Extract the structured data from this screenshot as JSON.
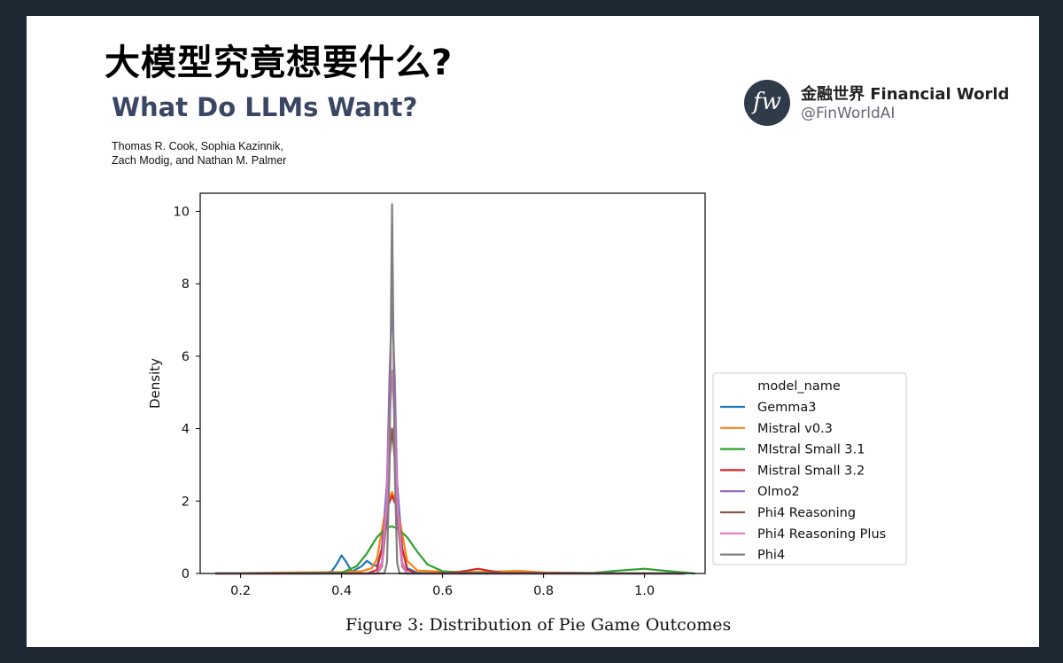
{
  "header": {
    "title_cn": "大模型究竟想要什么?",
    "title_en": "What Do LLMs Want?",
    "authors_line1": "Thomas R. Cook, Sophia Kazinnik,",
    "authors_line2": "Zach Modig, and Nathan M. Palmer"
  },
  "brand": {
    "logo_text": "fw",
    "name": "金融世界 Financial World",
    "handle": "@FinWorldAI"
  },
  "caption": "Figure 3: Distribution of Pie Game Outcomes",
  "chart_data": {
    "type": "line",
    "title": "",
    "xlabel": "",
    "ylabel": "Density",
    "xlim": [
      0.12,
      1.12
    ],
    "ylim": [
      0,
      10.5
    ],
    "xticks": [
      0.2,
      0.4,
      0.6,
      0.8,
      1.0
    ],
    "xtick_labels": [
      "0.2",
      "0.4",
      "0.6",
      "0.8",
      "1.0"
    ],
    "yticks": [
      0,
      2,
      4,
      6,
      8,
      10
    ],
    "ytick_labels": [
      "0",
      "2",
      "4",
      "6",
      "8",
      "10"
    ],
    "grid": false,
    "legend_title": "model_name",
    "legend_position": "right",
    "series": [
      {
        "name": "Gemma3",
        "color": "#1f77b4",
        "x": [
          0.15,
          0.35,
          0.38,
          0.39,
          0.4,
          0.41,
          0.42,
          0.44,
          0.45,
          0.46,
          0.47,
          0.48,
          0.49,
          0.495,
          0.5,
          0.505,
          0.51,
          0.52,
          0.53,
          0.55,
          0.6,
          0.7,
          1.08
        ],
        "y": [
          0,
          0,
          0.05,
          0.25,
          0.5,
          0.3,
          0.05,
          0.2,
          0.35,
          0.25,
          0.2,
          0.7,
          2.5,
          3.6,
          3.9,
          3.5,
          2.5,
          0.7,
          0.15,
          0.02,
          0,
          0,
          0
        ]
      },
      {
        "name": "Mistral v0.3",
        "color": "#ff7f0e",
        "x": [
          0.15,
          0.3,
          0.4,
          0.44,
          0.46,
          0.47,
          0.48,
          0.49,
          0.5,
          0.51,
          0.52,
          0.53,
          0.55,
          0.6,
          0.65,
          0.7,
          0.75,
          0.8,
          0.9,
          1.08
        ],
        "y": [
          0,
          0.03,
          0.04,
          0.06,
          0.15,
          0.4,
          1.2,
          2.0,
          2.25,
          1.9,
          1.1,
          0.35,
          0.08,
          0.05,
          0.04,
          0.05,
          0.07,
          0.03,
          0.01,
          0
        ]
      },
      {
        "name": "MIstral Small 3.1",
        "color": "#2ca02c",
        "x": [
          0.15,
          0.4,
          0.43,
          0.45,
          0.47,
          0.49,
          0.5,
          0.51,
          0.53,
          0.55,
          0.57,
          0.6,
          0.65,
          0.8,
          0.9,
          0.95,
          1.0,
          1.05,
          1.1
        ],
        "y": [
          0,
          0.02,
          0.2,
          0.55,
          1.0,
          1.27,
          1.3,
          1.25,
          1.0,
          0.6,
          0.25,
          0.06,
          0.02,
          0.01,
          0.02,
          0.08,
          0.13,
          0.06,
          0
        ]
      },
      {
        "name": "Mistral Small 3.2",
        "color": "#d62728",
        "x": [
          0.15,
          0.45,
          0.47,
          0.48,
          0.49,
          0.5,
          0.51,
          0.52,
          0.53,
          0.55,
          0.62,
          0.65,
          0.67,
          0.69,
          0.72,
          1.08
        ],
        "y": [
          0,
          0,
          0.1,
          0.7,
          1.8,
          2.15,
          1.8,
          0.7,
          0.1,
          0,
          0.02,
          0.08,
          0.13,
          0.08,
          0.02,
          0
        ]
      },
      {
        "name": "Olmo2",
        "color": "#9467bd",
        "x": [
          0.15,
          0.47,
          0.48,
          0.49,
          0.495,
          0.5,
          0.505,
          0.51,
          0.52,
          0.53,
          1.08
        ],
        "y": [
          0,
          0,
          0.3,
          2.5,
          5.5,
          7.5,
          5.5,
          2.5,
          0.3,
          0,
          0
        ]
      },
      {
        "name": "Phi4 Reasoning",
        "color": "#8c564b",
        "x": [
          0.15,
          0.47,
          0.48,
          0.49,
          0.495,
          0.5,
          0.505,
          0.51,
          0.52,
          0.53,
          1.08
        ],
        "y": [
          0,
          0,
          0.2,
          1.6,
          3.2,
          4.0,
          3.2,
          1.6,
          0.2,
          0,
          0
        ]
      },
      {
        "name": "Phi4 Reasoning Plus",
        "color": "#e377c2",
        "x": [
          0.15,
          0.47,
          0.48,
          0.49,
          0.495,
          0.5,
          0.505,
          0.51,
          0.52,
          0.53,
          1.08
        ],
        "y": [
          0,
          0,
          0.25,
          2.0,
          4.2,
          5.6,
          4.2,
          2.0,
          0.25,
          0,
          0
        ]
      },
      {
        "name": "Phi4",
        "color": "#7f7f7f",
        "x": [
          0.15,
          0.485,
          0.49,
          0.495,
          0.498,
          0.5,
          0.502,
          0.505,
          0.51,
          0.515,
          1.08
        ],
        "y": [
          0,
          0,
          0.3,
          3.0,
          7.5,
          10.2,
          7.5,
          3.0,
          0.3,
          0,
          0
        ]
      }
    ]
  }
}
